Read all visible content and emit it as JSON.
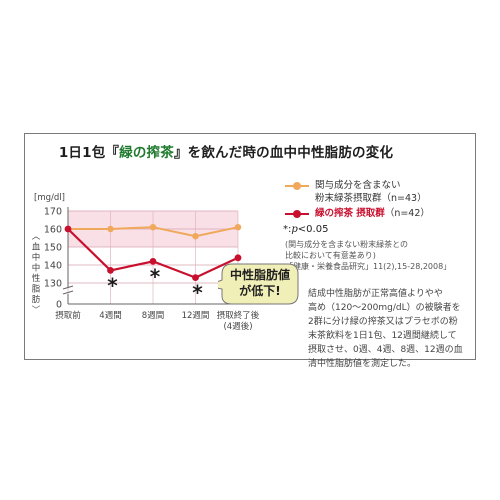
{
  "title": {
    "pre": "1日1包『",
    "highlight": "緑の搾茶",
    "post": "』を飲んだ時の血中中性脂肪の変化"
  },
  "chart_data": {
    "type": "line",
    "unit_label": "[mg/dl]",
    "ylabel": "血中中性脂肪",
    "categories": [
      "摂取前",
      "4週間",
      "8週間",
      "12週間",
      "摂取終了後"
    ],
    "category_sublabels": [
      "",
      "",
      "",
      "",
      "(4週後)"
    ],
    "yticks": [
      0,
      130,
      140,
      150,
      160,
      170
    ],
    "ylim_display": [
      130,
      170
    ],
    "axis_break": true,
    "highlight_band": [
      150,
      170
    ],
    "series": [
      {
        "name": "関与成分を含まない粉末緑茶摂取群（n=43）",
        "values": [
          160,
          160,
          161,
          156,
          161
        ],
        "color": "#f0a85a"
      },
      {
        "name": "緑の搾茶 摂取群（n=42）",
        "values": [
          160,
          137,
          142,
          133,
          144
        ],
        "color": "#c8102e"
      }
    ],
    "significance_markers": [
      "4週間",
      "8週間",
      "12週間"
    ],
    "significance_symbol": "*"
  },
  "legend": {
    "ctrl_line1": "関与成分を含まない",
    "ctrl_line2": "粉末緑茶摂取群（n=43）",
    "trt_name": "緑の搾茶 摂取群",
    "trt_n": "（n=42）"
  },
  "sig_note": {
    "star": "*:",
    "p": "p",
    "rest": "<0.05"
  },
  "notes": [
    "(関与成分を含まない粉末緑茶との",
    "比較において有意差あり)",
    "「健康・栄養食品研究」11(2),15-28,2008」"
  ],
  "bubble": {
    "line1": "中性脂肪値",
    "line2": "が低下!"
  },
  "description": [
    "結成中性脂肪が正常高値よりやや",
    "高め（120〜200mg/dL）の被験者を",
    "2群に分け緑の搾茶又はプラセボの粉",
    "末茶飲料を1日1包、12週間継続して",
    "摂取させ、0週、4週、8週、12週の血",
    "清中性脂肪値を測定した。"
  ]
}
